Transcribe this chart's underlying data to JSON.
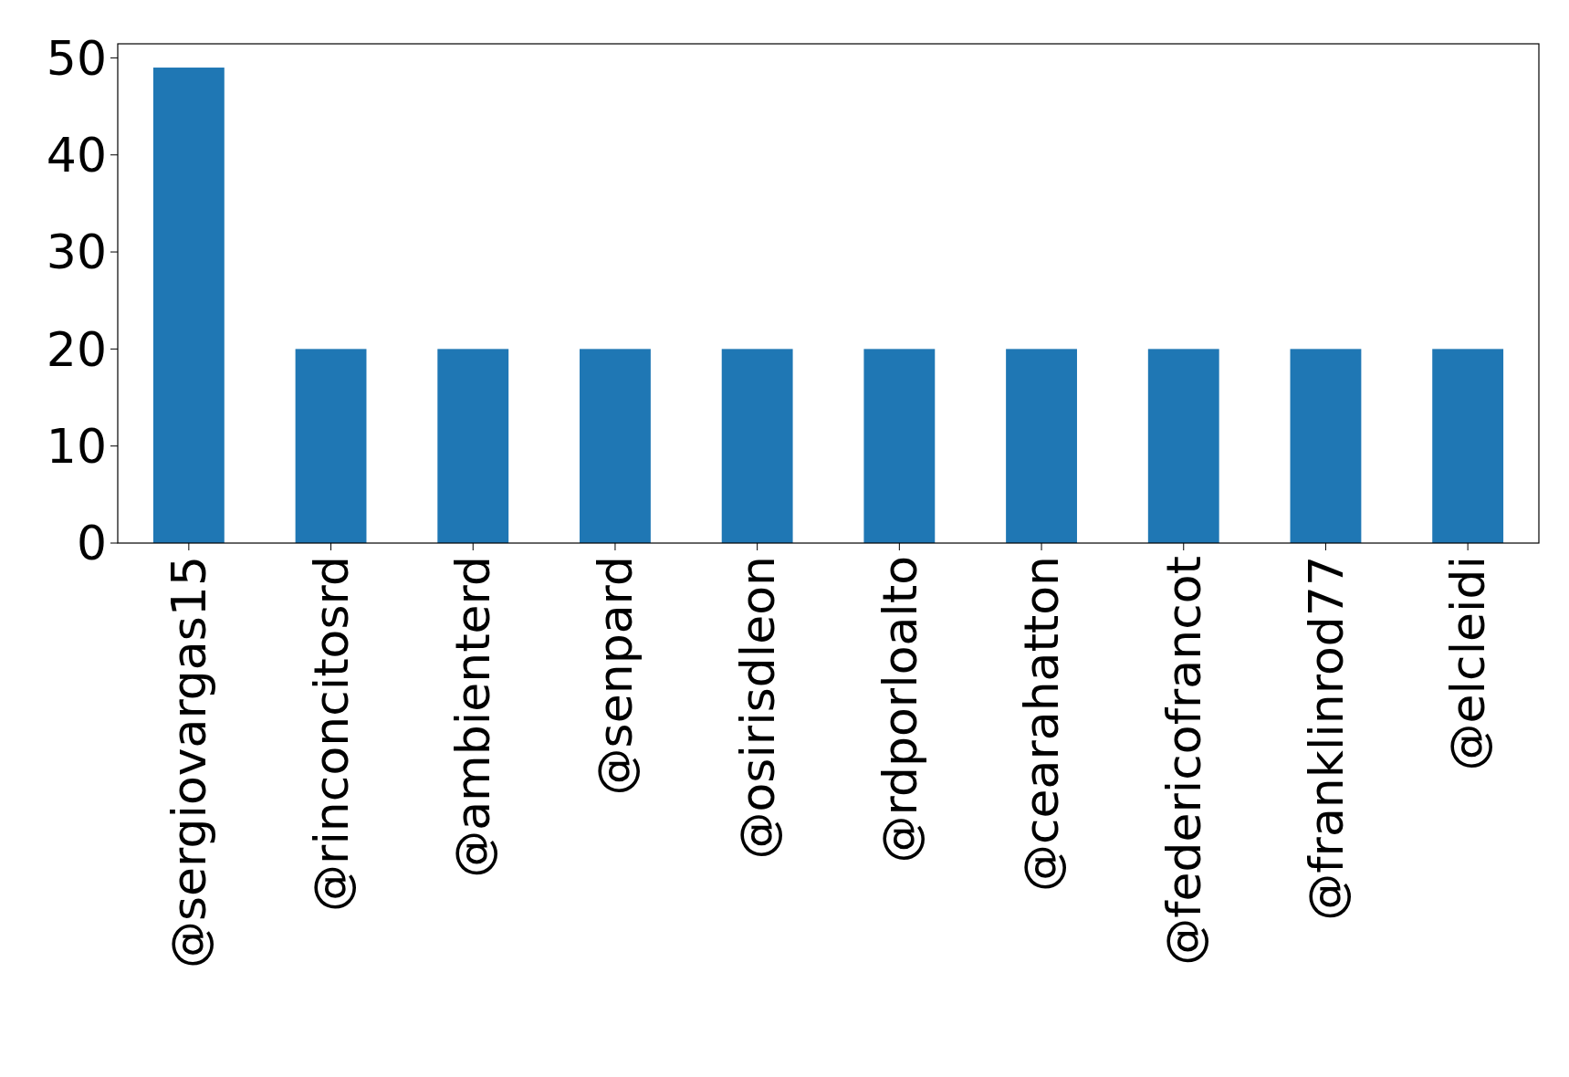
{
  "chart_data": {
    "type": "bar",
    "categories": [
      "@sergiovargas15",
      "@rinconcitosrd",
      "@ambienterd",
      "@senpard",
      "@osirisdleon",
      "@rdporloalto",
      "@cearahatton",
      "@federicofrancot",
      "@franklinrod77",
      "@elcleidi"
    ],
    "values": [
      49,
      20,
      20,
      20,
      20,
      20,
      20,
      20,
      20,
      20
    ],
    "color": "#1f77b4",
    "ylim": [
      0,
      51.45
    ],
    "yticks": [
      0,
      10,
      20,
      30,
      40,
      50
    ],
    "grid": false
  }
}
